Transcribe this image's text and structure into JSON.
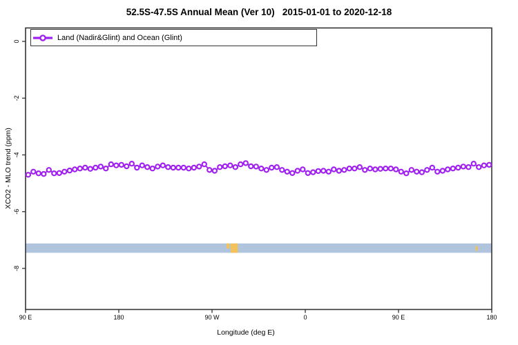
{
  "title": "52.5S-47.5S Annual Mean (Ver 10)   2015-01-01 to 2020-12-18",
  "legend": {
    "label": "Land (Nadir&Glint) and Ocean (Glint)",
    "marker": "open-circle-on-line"
  },
  "axes": {
    "x_label": "Longitude (deg E)",
    "y_label": "XCO2 - MLO trend (ppm)",
    "x_ticks": [
      {
        "label": "90 E",
        "lon": 90
      },
      {
        "label": "180",
        "lon": 180
      },
      {
        "label": "90 W",
        "lon": 270
      },
      {
        "label": "0",
        "lon": 360
      },
      {
        "label": "90 E",
        "lon": 450
      },
      {
        "label": "180",
        "lon": 540
      }
    ],
    "y_ticks": [
      {
        "label": "0",
        "value": 0
      },
      {
        "label": "-2",
        "value": -2
      },
      {
        "label": "-4",
        "value": -4
      },
      {
        "label": "-6",
        "value": -6
      },
      {
        "label": "-8",
        "value": -8
      }
    ]
  },
  "colors": {
    "series": "#A020F0",
    "frame": "#333333",
    "band_ocean": "#B0C4DE",
    "band_land": "#F2C25C"
  },
  "chart_data": {
    "type": "line",
    "title": "52.5S-47.5S Annual Mean (Ver 10)   2015-01-01 to 2020-12-18",
    "xlabel": "Longitude (deg E)",
    "ylabel": "XCO2 - MLO trend (ppm)",
    "xlim": [
      90,
      540
    ],
    "ylim": [
      -9.4,
      0.5
    ],
    "grid": false,
    "legend_position": "top-left",
    "x_tick_labels": [
      "90 E",
      "180",
      "90 W",
      "0",
      "90 E",
      "180"
    ],
    "x_tick_positions_deg_east": [
      90,
      180,
      270,
      360,
      450,
      540
    ],
    "y_tick_values": [
      0,
      -2,
      -4,
      -6,
      -8
    ],
    "x_deg_east": [
      92.5,
      97.5,
      102.5,
      107.5,
      112.5,
      117.5,
      122.5,
      127.5,
      132.5,
      137.5,
      142.5,
      147.5,
      152.5,
      157.5,
      162.5,
      167.5,
      172.5,
      177.5,
      182.5,
      187.5,
      192.5,
      197.5,
      202.5,
      207.5,
      212.5,
      217.5,
      222.5,
      227.5,
      232.5,
      237.5,
      242.5,
      247.5,
      252.5,
      257.5,
      262.5,
      267.5,
      272.5,
      277.5,
      282.5,
      287.5,
      292.5,
      297.5,
      302.5,
      307.5,
      312.5,
      317.5,
      322.5,
      327.5,
      332.5,
      337.5,
      342.5,
      347.5,
      352.5,
      357.5,
      362.5,
      367.5,
      372.5,
      377.5,
      382.5,
      387.5,
      392.5,
      397.5,
      402.5,
      407.5,
      412.5,
      417.5,
      422.5,
      427.5,
      432.5,
      437.5,
      442.5,
      447.5,
      452.5,
      457.5,
      462.5,
      467.5,
      472.5,
      477.5,
      482.5,
      487.5,
      492.5,
      497.5,
      502.5,
      507.5,
      512.5,
      517.5,
      522.5,
      527.5,
      532.5,
      537.5
    ],
    "series": [
      {
        "name": "Land (Nadir&Glint) and Ocean (Glint)",
        "color": "#A020F0",
        "marker": "open-circle",
        "values": [
          -4.7,
          -4.59,
          -4.65,
          -4.67,
          -4.53,
          -4.65,
          -4.64,
          -4.59,
          -4.55,
          -4.51,
          -4.48,
          -4.45,
          -4.49,
          -4.45,
          -4.41,
          -4.48,
          -4.33,
          -4.37,
          -4.35,
          -4.4,
          -4.31,
          -4.45,
          -4.37,
          -4.43,
          -4.48,
          -4.41,
          -4.37,
          -4.43,
          -4.45,
          -4.45,
          -4.45,
          -4.48,
          -4.45,
          -4.41,
          -4.33,
          -4.53,
          -4.56,
          -4.43,
          -4.4,
          -4.37,
          -4.43,
          -4.33,
          -4.29,
          -4.4,
          -4.41,
          -4.48,
          -4.53,
          -4.45,
          -4.43,
          -4.53,
          -4.59,
          -4.64,
          -4.56,
          -4.51,
          -4.64,
          -4.61,
          -4.57,
          -4.56,
          -4.59,
          -4.51,
          -4.56,
          -4.53,
          -4.48,
          -4.48,
          -4.43,
          -4.53,
          -4.48,
          -4.51,
          -4.49,
          -4.48,
          -4.48,
          -4.51,
          -4.59,
          -4.65,
          -4.53,
          -4.59,
          -4.61,
          -4.53,
          -4.45,
          -4.59,
          -4.56,
          -4.51,
          -4.48,
          -4.45,
          -4.41,
          -4.43,
          -4.31,
          -4.43,
          -4.37,
          -4.35
        ]
      }
    ],
    "surface_band": {
      "description": "latitude-strip map of surface type: ocean (blue) with land (tan) patches",
      "value_top": -7.12,
      "value_bottom": -7.45,
      "lon_range": [
        90,
        540
      ],
      "ocean_color": "#B0C4DE",
      "land_color": "#F2C25C",
      "land_patches": [
        {
          "lon": [
            284,
            287
          ],
          "part": "top"
        },
        {
          "lon": [
            288,
            295
          ],
          "part": "full"
        },
        {
          "lon": [
            524.5,
            526.5
          ],
          "part": "mid"
        }
      ]
    }
  }
}
